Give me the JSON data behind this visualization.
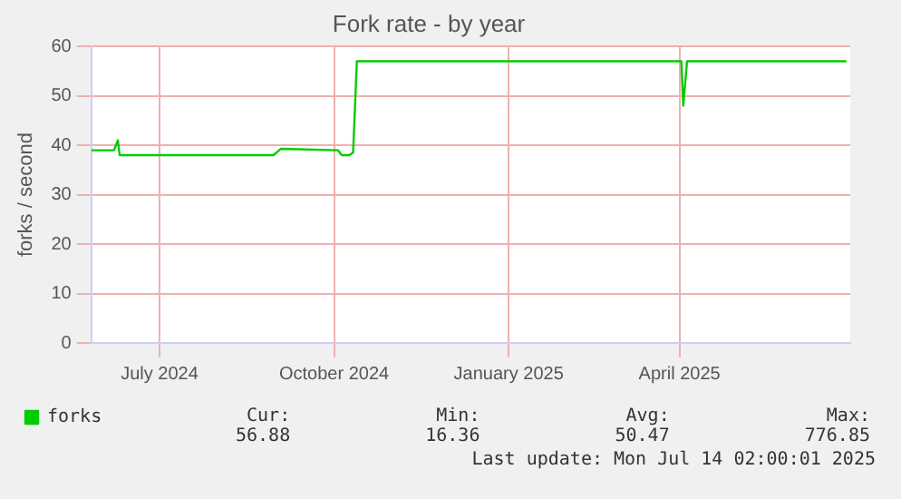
{
  "chart_data": {
    "type": "line",
    "title": "Fork rate - by year",
    "ylabel": "forks / second",
    "x": [
      "2024-06-09",
      "2024-06-21",
      "2024-06-23",
      "2024-06-24",
      "2024-09-13",
      "2024-09-17",
      "2024-10-17",
      "2024-10-19",
      "2024-10-23",
      "2024-10-25",
      "2024-10-27",
      "2025-04-16",
      "2025-04-17",
      "2025-04-19",
      "2025-07-12"
    ],
    "series": [
      {
        "name": "forks",
        "color": "#00cc00",
        "values": [
          39,
          39,
          41,
          38,
          38,
          39.3,
          39,
          38,
          38,
          38.5,
          57,
          57,
          48,
          57,
          57
        ]
      }
    ],
    "xlim": [
      "2024-06-09",
      "2025-07-14"
    ],
    "xticks": [
      {
        "value": "2024-07-15",
        "label": "July 2024"
      },
      {
        "value": "2024-10-15",
        "label": "October 2024"
      },
      {
        "value": "2025-01-15",
        "label": "January 2025"
      },
      {
        "value": "2025-04-15",
        "label": "April 2025"
      }
    ],
    "ylim": [
      0,
      60
    ],
    "yticks": [
      0,
      10,
      20,
      30,
      40,
      50,
      60
    ],
    "grid": true,
    "legend": "bottom",
    "marker": "none",
    "line_style": "solid",
    "annotations": [
      "Cur: 56.88",
      "Min: 16.36",
      "Avg: 50.47",
      "Max: 776.85",
      "Last update: Mon Jul 14 02:00:01 2025"
    ]
  }
}
